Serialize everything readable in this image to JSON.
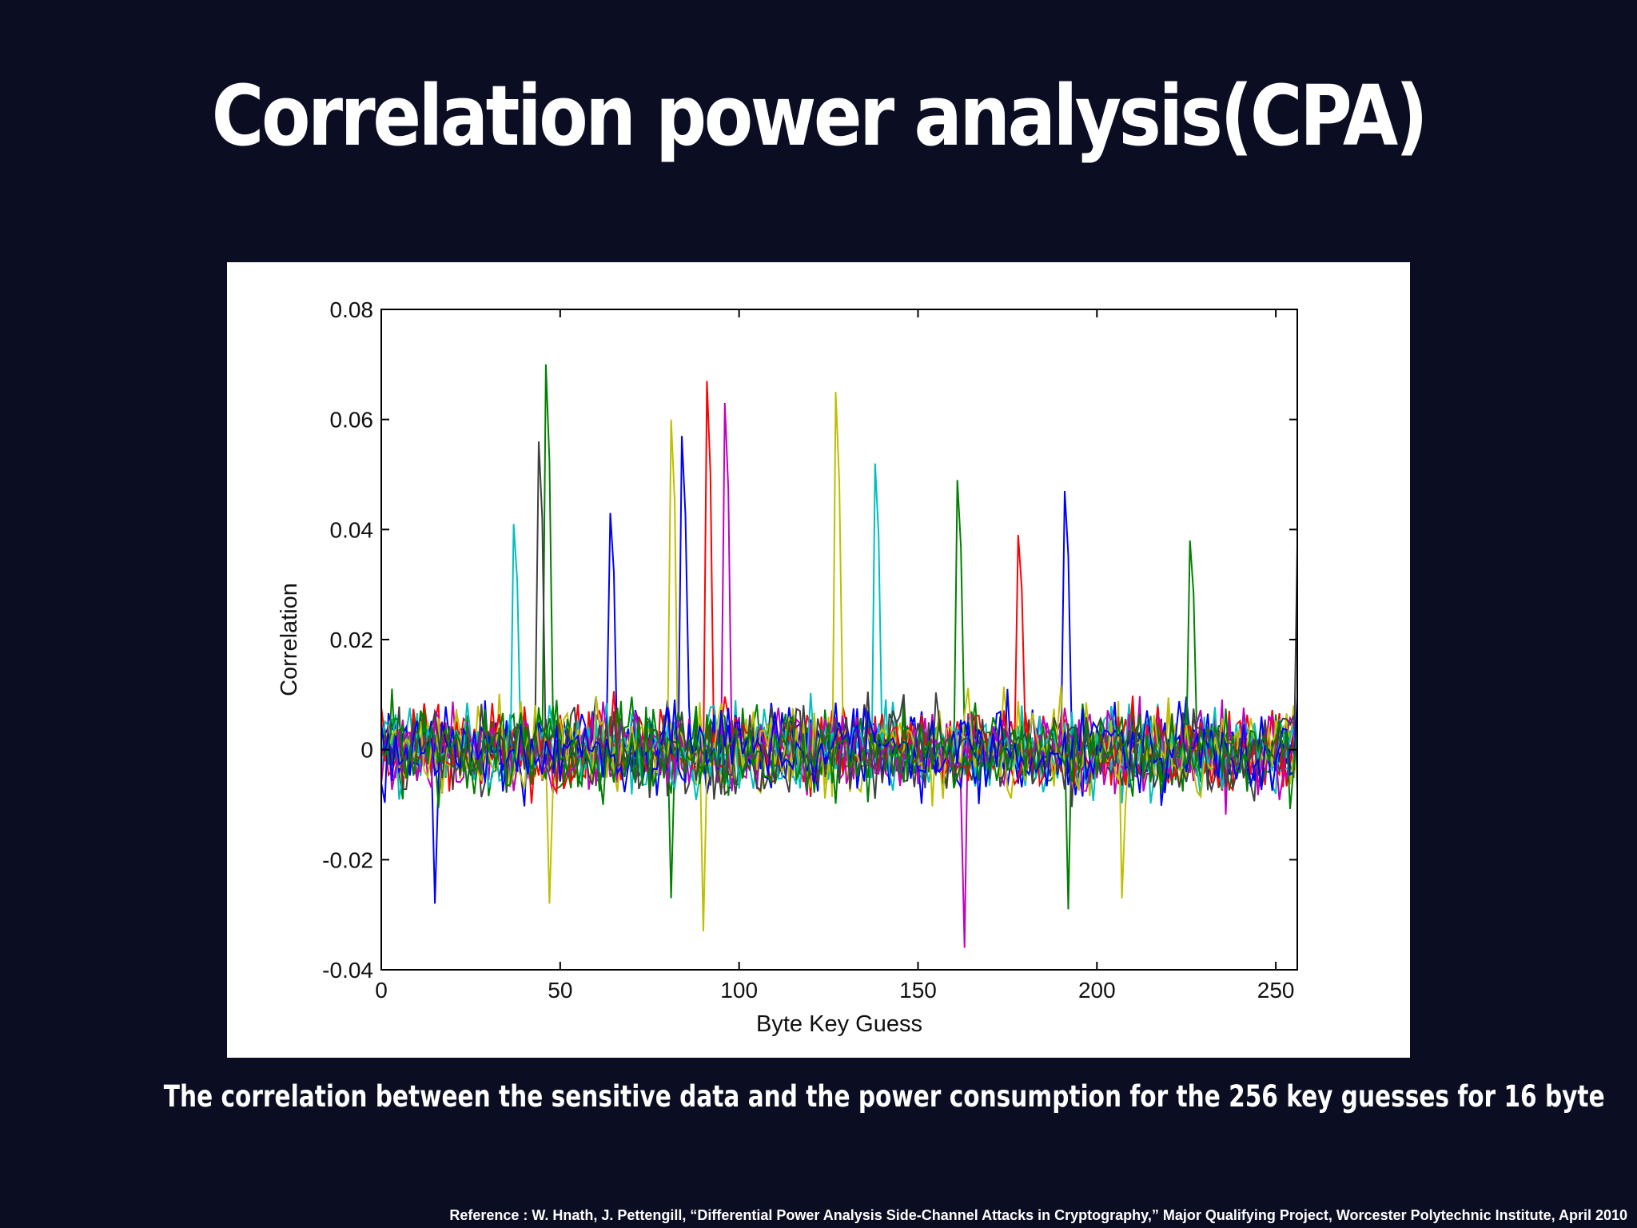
{
  "slide": {
    "title": "Correlation power analysis(CPA)",
    "caption": "The correlation between the sensitive data and the power consumption for the 256 key guesses for 16 byte",
    "reference": "Reference : W. Hnath, J. Pettengill, “Differential Power Analysis Side-Channel Attacks in Cryptography,” Major Qualifying Project, Worcester Polytechnic Institute, April 2010"
  },
  "chart_data": {
    "type": "line",
    "title": "",
    "xlabel": "Byte Key Guess",
    "ylabel": "Correlation",
    "xlim": [
      0,
      256
    ],
    "ylim": [
      -0.04,
      0.08
    ],
    "x_ticks": [
      0,
      50,
      100,
      150,
      200,
      250
    ],
    "y_ticks": [
      -0.04,
      -0.02,
      0,
      0.02,
      0.04,
      0.06,
      0.08
    ],
    "x_tick_labels": [
      "0",
      "50",
      "100",
      "150",
      "200",
      "250"
    ],
    "y_tick_labels": [
      "-0.04",
      "-0.02",
      "0",
      "0.02",
      "0.04",
      "0.06",
      "0.08"
    ],
    "grid": false,
    "legend": "none",
    "series_count": 16,
    "series_colors": [
      "#0000ff",
      "#008000",
      "#ff0000",
      "#00bfbf",
      "#bf00bf",
      "#bfbf00",
      "#404040",
      "#0000ff",
      "#008000",
      "#ff0000",
      "#00bfbf",
      "#bf00bf",
      "#bfbf00",
      "#404040",
      "#0000ff",
      "#008000"
    ],
    "noise_band": [
      -0.02,
      0.02
    ],
    "peaks": [
      {
        "x": 37,
        "y": 0.041,
        "color": "#00bfbf"
      },
      {
        "x": 44,
        "y": 0.056,
        "color": "#404040"
      },
      {
        "x": 46,
        "y": 0.07,
        "color": "#008000"
      },
      {
        "x": 64,
        "y": 0.043,
        "color": "#0000ff"
      },
      {
        "x": 81,
        "y": 0.06,
        "color": "#bfbf00"
      },
      {
        "x": 84,
        "y": 0.057,
        "color": "#0000ff"
      },
      {
        "x": 91,
        "y": 0.067,
        "color": "#ff0000"
      },
      {
        "x": 96,
        "y": 0.063,
        "color": "#bf00bf"
      },
      {
        "x": 127,
        "y": 0.065,
        "color": "#bfbf00"
      },
      {
        "x": 138,
        "y": 0.052,
        "color": "#00bfbf"
      },
      {
        "x": 161,
        "y": 0.049,
        "color": "#008000"
      },
      {
        "x": 178,
        "y": 0.039,
        "color": "#ff0000"
      },
      {
        "x": 191,
        "y": 0.047,
        "color": "#0000ff"
      },
      {
        "x": 226,
        "y": 0.038,
        "color": "#008000"
      },
      {
        "x": 256,
        "y": 0.037,
        "color": "#404040"
      }
    ],
    "troughs": [
      {
        "x": 15,
        "y": -0.028,
        "color": "#0000ff"
      },
      {
        "x": 47,
        "y": -0.028,
        "color": "#bfbf00"
      },
      {
        "x": 81,
        "y": -0.027,
        "color": "#008000"
      },
      {
        "x": 90,
        "y": -0.033,
        "color": "#bfbf00"
      },
      {
        "x": 163,
        "y": -0.036,
        "color": "#bf00bf"
      },
      {
        "x": 192,
        "y": -0.029,
        "color": "#008000"
      },
      {
        "x": 207,
        "y": -0.027,
        "color": "#bfbf00"
      }
    ]
  }
}
